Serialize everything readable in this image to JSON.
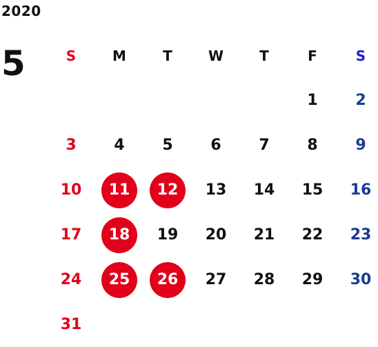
{
  "header": {
    "year": "2020",
    "month": "5"
  },
  "weekdays": [
    "S",
    "M",
    "T",
    "W",
    "T",
    "F",
    "S"
  ],
  "colors": {
    "sunday": "#e2001a",
    "saturday": "#1a3d8f",
    "saturday_header": "#1a1adb",
    "highlight": "#e2001a"
  },
  "weeks": [
    [
      "",
      "",
      "",
      "",
      "",
      "1",
      "2"
    ],
    [
      "3",
      "4",
      "5",
      "6",
      "7",
      "8",
      "9"
    ],
    [
      "10",
      "11",
      "12",
      "13",
      "14",
      "15",
      "16"
    ],
    [
      "17",
      "18",
      "19",
      "20",
      "21",
      "22",
      "23"
    ],
    [
      "24",
      "25",
      "26",
      "27",
      "28",
      "29",
      "30"
    ],
    [
      "31",
      "",
      "",
      "",
      "",
      "",
      ""
    ]
  ],
  "highlighted_days": [
    "11",
    "12",
    "18",
    "25",
    "26"
  ]
}
